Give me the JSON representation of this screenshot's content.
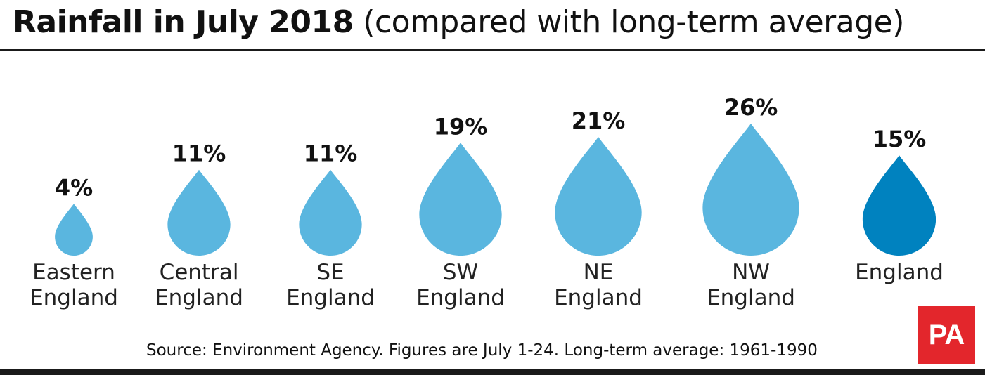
{
  "header": {
    "title_main": "Rainfall in July 2018",
    "title_sub": "(compared with long-term average)"
  },
  "footer": {
    "source": "Source: Environment Agency. Figures are July 1-24. Long-term average: 1961-1990",
    "logo_text": "PA"
  },
  "colors": {
    "region_drop": "#5ab6df",
    "england_drop": "#0082bf",
    "logo_background": "#e3262c"
  },
  "chart_data": {
    "type": "bar",
    "mark": "raindrop",
    "title": "Rainfall in July 2018",
    "subtitle": "(compared with long-term average)",
    "unit": "%",
    "categories": [
      [
        "Eastern",
        "England"
      ],
      [
        "Central",
        "England"
      ],
      [
        "SE",
        "England"
      ],
      [
        "SW",
        "England"
      ],
      [
        "NE",
        "England"
      ],
      [
        "NW",
        "England"
      ],
      [
        "England"
      ]
    ],
    "values": [
      4,
      11,
      11,
      19,
      21,
      26,
      15
    ],
    "value_labels": [
      "4%",
      "11%",
      "11%",
      "19%",
      "21%",
      "26%",
      "15%"
    ],
    "highlight_index": 6
  }
}
